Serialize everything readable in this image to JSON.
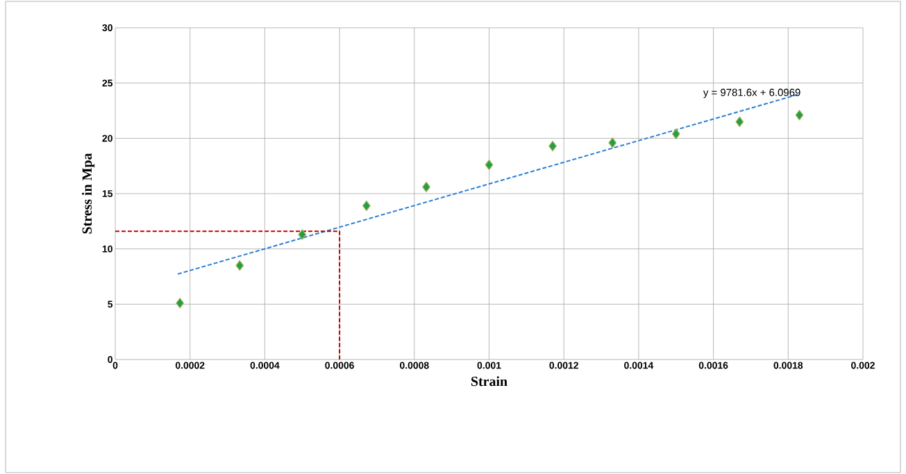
{
  "chart_data": {
    "type": "scatter",
    "xlabel": "Strain",
    "ylabel": "Stress in Mpa",
    "xlim": [
      0,
      0.002
    ],
    "ylim": [
      0,
      30
    ],
    "xticks": [
      0,
      0.0002,
      0.0004,
      0.0006,
      0.0008,
      0.001,
      0.0012,
      0.0014,
      0.0016,
      0.0018,
      0.002
    ],
    "yticks": [
      0,
      5,
      10,
      15,
      20,
      25,
      30
    ],
    "grid": true,
    "marker": "diamond",
    "series": [
      {
        "color": "#1fa04a",
        "x": [
          0.000173,
          0.000333,
          0.0005,
          0.000672,
          0.000832,
          0.001,
          0.00117,
          0.00133,
          0.0015,
          0.00167,
          0.00183
        ],
        "values": [
          5.1,
          8.5,
          11.3,
          13.9,
          15.6,
          17.6,
          19.3,
          19.6,
          20.4,
          21.5,
          22.1
        ]
      },
      {
        "type": "line",
        "color": "#2a7fd4",
        "line_style": "dashed",
        "marker": "none",
        "x": [
          0.000167,
          0.00183
        ],
        "values": [
          7.73,
          24.0
        ]
      },
      {
        "type": "line",
        "color": "#c00000",
        "line_style": "dashed",
        "marker": "none",
        "x": [
          0,
          0.0006,
          0.0006
        ],
        "values": [
          11.6,
          11.6,
          0
        ]
      }
    ],
    "annotations": [
      "y = 9781.6x + 6.0969"
    ]
  }
}
